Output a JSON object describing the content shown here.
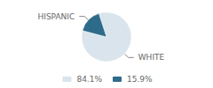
{
  "chart_data": {
    "type": "pie",
    "categories": [
      "84.1%",
      "15.9%"
    ],
    "values": [
      84.1,
      15.9
    ],
    "colors": [
      "#d9e4ec",
      "#2e6b8a"
    ],
    "annotations": [
      "WHITE",
      "HISPANIC"
    ],
    "legend": "bottom"
  }
}
